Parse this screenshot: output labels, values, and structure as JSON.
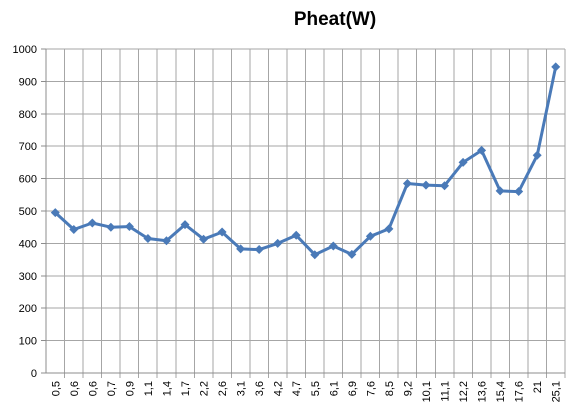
{
  "chart_data": {
    "type": "line",
    "title": "Pheat(W)",
    "xlabel": "",
    "ylabel": "",
    "categories": [
      "0,5",
      "0,6",
      "0,6",
      "0,7",
      "0,9",
      "1,1",
      "1,4",
      "1,7",
      "2,2",
      "2,6",
      "3,1",
      "3,6",
      "4,2",
      "4,7",
      "5,5",
      "6,1",
      "6,9",
      "7,6",
      "8,5",
      "9,2",
      "10,1",
      "11,1",
      "12,2",
      "13,6",
      "15,4",
      "17,6",
      "21",
      "25,1"
    ],
    "series": [
      {
        "values": [
          495,
          443,
          463,
          450,
          452,
          415,
          408,
          458,
          413,
          435,
          383,
          381,
          400,
          425,
          365,
          392,
          366,
          422,
          445,
          585,
          580,
          578,
          650,
          687,
          562,
          560,
          672,
          945
        ]
      }
    ],
    "ylim": [
      0,
      1000
    ],
    "yticks": [
      0,
      100,
      200,
      300,
      400,
      500,
      600,
      700,
      800,
      900,
      1000
    ],
    "grid": true,
    "legend": "none",
    "colors": {
      "line": "#4a7ab8",
      "grid": "#a6a6a6",
      "axis": "#8c8c8c"
    }
  }
}
